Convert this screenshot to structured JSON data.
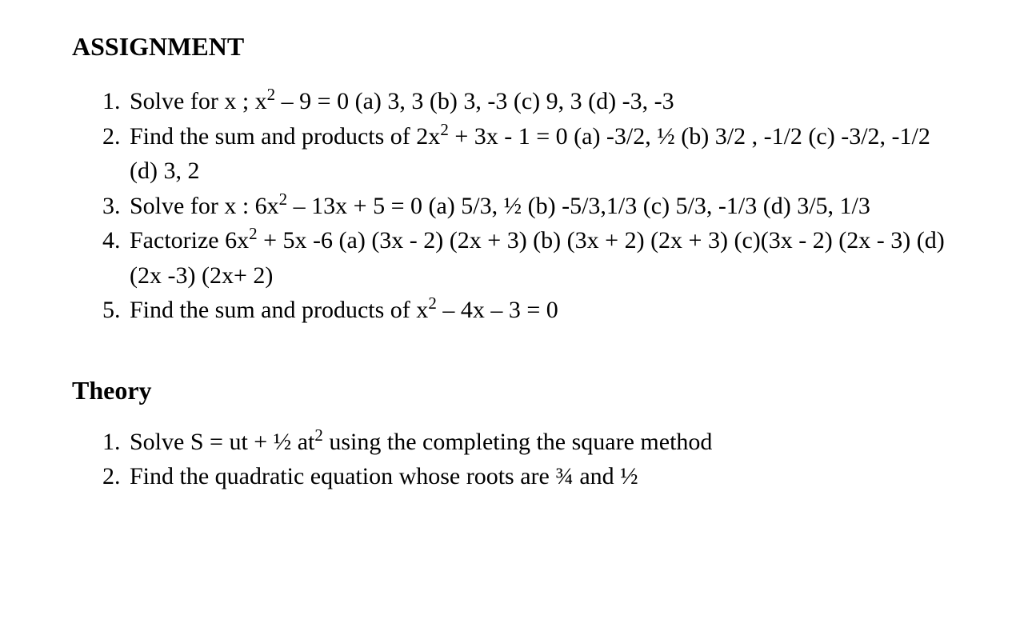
{
  "document": {
    "background_color": "#ffffff",
    "text_color": "#000000",
    "font_family": "Times New Roman",
    "heading_fontsize_pt": 24,
    "body_fontsize_pt": 22
  },
  "sections": {
    "assignment": {
      "heading": "ASSIGNMENT",
      "items": [
        {
          "prefix": "Solve for x ; x",
          "sup1": "2",
          "rest": " – 9 = 0 (a) 3, 3 (b) 3, -3 (c) 9, 3 (d) -3, -3"
        },
        {
          "prefix": "Find the sum and products of 2x",
          "sup1": "2",
          "rest": " + 3x -  1 = 0 (a) -3/2, ½ (b) 3/2 , -1/2 (c) -3/2, -1/2 (d) 3, 2"
        },
        {
          "prefix": "Solve for x : 6x",
          "sup1": "2",
          "rest": " – 13x + 5 = 0 (a) 5/3, ½ (b) -5/3,1/3 (c) 5/3, -1/3 (d) 3/5, 1/3"
        },
        {
          "prefix": "Factorize 6x",
          "sup1": "2",
          "rest": " + 5x -6 (a) (3x - 2) (2x + 3) (b) (3x + 2) (2x + 3) (c)(3x - 2) (2x - 3) (d) (2x -3) (2x+ 2)"
        },
        {
          "prefix": "Find the sum and products of x",
          "sup1": "2",
          "rest": " – 4x – 3 = 0"
        }
      ]
    },
    "theory": {
      "heading": "Theory",
      "items": [
        {
          "prefix": "Solve S = ut + ½ at",
          "sup1": "2",
          "rest": "  using the completing the square method"
        },
        {
          "prefix": "Find the quadratic equation whose roots are ¾ and ½",
          "sup1": "",
          "rest": ""
        }
      ]
    }
  }
}
